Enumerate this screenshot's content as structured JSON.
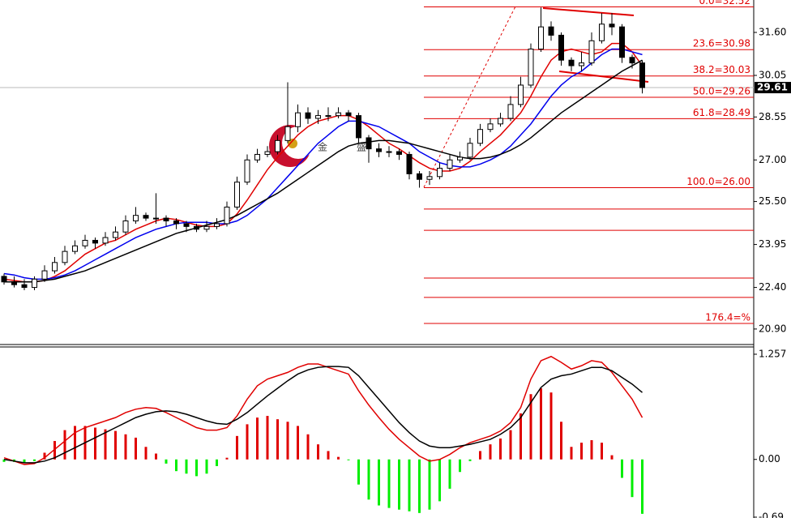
{
  "chart_data": [
    {
      "type": "candlestick",
      "open": [
        22.8,
        22.6,
        22.5,
        22.4,
        22.7,
        23.0,
        23.3,
        23.7,
        23.9,
        24.1,
        24.0,
        24.2,
        24.4,
        24.8,
        25.0,
        24.9,
        24.9,
        24.8,
        24.7,
        24.6,
        24.5,
        24.6,
        24.7,
        25.3,
        26.2,
        27.0,
        27.2,
        27.3,
        27.7,
        28.2,
        28.7,
        28.5,
        28.6,
        28.6,
        28.7,
        28.6,
        27.8,
        27.4,
        27.3,
        27.3,
        27.2,
        26.5,
        26.3,
        26.4,
        26.7,
        27.0,
        27.1,
        27.6,
        28.1,
        28.3,
        28.5,
        29.0,
        29.7,
        31.0,
        31.8,
        31.5,
        30.6,
        30.4,
        30.5,
        31.3,
        31.9,
        31.8,
        30.7,
        30.5
      ],
      "high": [
        22.9,
        22.8,
        22.7,
        22.8,
        23.2,
        23.5,
        23.9,
        24.1,
        24.3,
        24.2,
        24.4,
        24.6,
        25.0,
        25.3,
        25.1,
        25.8,
        25.0,
        24.9,
        24.8,
        24.7,
        24.8,
        24.9,
        25.5,
        26.4,
        27.2,
        27.4,
        27.5,
        27.9,
        29.8,
        29.0,
        28.9,
        28.8,
        28.9,
        28.9,
        28.8,
        28.7,
        27.9,
        27.6,
        27.5,
        27.4,
        27.3,
        26.6,
        26.6,
        26.9,
        27.2,
        27.3,
        27.8,
        28.3,
        28.5,
        28.7,
        29.3,
        30.0,
        31.2,
        32.5,
        32.0,
        31.6,
        30.7,
        30.9,
        31.6,
        32.3,
        32.3,
        31.9,
        30.8,
        30.6
      ],
      "low": [
        22.5,
        22.4,
        22.3,
        22.3,
        22.6,
        22.9,
        23.2,
        23.6,
        23.8,
        23.8,
        23.9,
        24.1,
        24.3,
        24.7,
        24.8,
        24.7,
        24.6,
        24.5,
        24.4,
        24.4,
        24.4,
        24.5,
        24.6,
        25.2,
        26.1,
        26.9,
        27.1,
        27.2,
        27.6,
        28.0,
        28.3,
        28.3,
        28.4,
        28.5,
        28.4,
        27.6,
        26.9,
        27.1,
        27.1,
        27.0,
        26.3,
        26.0,
        26.1,
        26.3,
        26.6,
        26.9,
        27.0,
        27.5,
        28.0,
        28.2,
        28.4,
        28.9,
        29.6,
        30.9,
        31.3,
        30.4,
        30.2,
        30.2,
        30.4,
        31.2,
        31.5,
        30.5,
        30.3,
        29.4
      ],
      "close": [
        22.6,
        22.5,
        22.4,
        22.7,
        23.0,
        23.3,
        23.7,
        23.9,
        24.1,
        24.0,
        24.2,
        24.4,
        24.8,
        25.0,
        24.9,
        24.9,
        24.8,
        24.7,
        24.6,
        24.5,
        24.6,
        24.7,
        25.3,
        26.2,
        27.0,
        27.2,
        27.3,
        27.7,
        28.2,
        28.7,
        28.5,
        28.6,
        28.6,
        28.7,
        28.6,
        27.8,
        27.4,
        27.3,
        27.3,
        27.2,
        26.5,
        26.3,
        26.4,
        26.7,
        27.0,
        27.1,
        27.6,
        28.1,
        28.3,
        28.5,
        29.0,
        29.7,
        31.0,
        31.8,
        31.5,
        30.6,
        30.4,
        30.5,
        31.3,
        31.9,
        31.8,
        30.7,
        30.5,
        29.61
      ],
      "lines": [
        {
          "color": "#e00000",
          "values": [
            22.7,
            22.65,
            22.6,
            22.6,
            22.65,
            22.8,
            23.0,
            23.3,
            23.6,
            23.8,
            24.0,
            24.1,
            24.3,
            24.5,
            24.65,
            24.8,
            24.9,
            24.85,
            24.75,
            24.65,
            24.6,
            24.6,
            24.7,
            25.05,
            25.55,
            26.1,
            26.65,
            27.1,
            27.5,
            27.9,
            28.2,
            28.4,
            28.5,
            28.6,
            28.6,
            28.45,
            28.2,
            27.9,
            27.6,
            27.4,
            27.15,
            26.9,
            26.7,
            26.6,
            26.6,
            26.7,
            26.95,
            27.3,
            27.6,
            27.9,
            28.3,
            28.7,
            29.3,
            30.0,
            30.6,
            30.9,
            31.0,
            30.9,
            30.8,
            30.9,
            31.2,
            31.2,
            30.9,
            30.4
          ]
        },
        {
          "color": "#0000ee",
          "values": [
            22.9,
            22.85,
            22.75,
            22.7,
            22.7,
            22.75,
            22.85,
            23.0,
            23.2,
            23.4,
            23.6,
            23.8,
            24.0,
            24.2,
            24.35,
            24.5,
            24.6,
            24.7,
            24.75,
            24.75,
            24.75,
            24.7,
            24.7,
            24.8,
            25.0,
            25.3,
            25.6,
            26.0,
            26.4,
            26.8,
            27.2,
            27.6,
            27.9,
            28.2,
            28.4,
            28.4,
            28.3,
            28.2,
            28.0,
            27.8,
            27.6,
            27.3,
            27.1,
            26.9,
            26.8,
            26.75,
            26.75,
            26.85,
            27.0,
            27.2,
            27.5,
            27.9,
            28.3,
            28.8,
            29.3,
            29.7,
            30.0,
            30.2,
            30.5,
            30.8,
            31.0,
            31.0,
            30.9,
            30.8
          ]
        },
        {
          "color": "#000000",
          "values": [
            22.6,
            22.6,
            22.6,
            22.6,
            22.65,
            22.7,
            22.8,
            22.9,
            23.0,
            23.15,
            23.3,
            23.45,
            23.6,
            23.75,
            23.9,
            24.05,
            24.2,
            24.35,
            24.45,
            24.55,
            24.65,
            24.75,
            24.85,
            25.0,
            25.2,
            25.4,
            25.6,
            25.8,
            26.05,
            26.3,
            26.55,
            26.8,
            27.05,
            27.3,
            27.5,
            27.6,
            27.65,
            27.7,
            27.7,
            27.65,
            27.6,
            27.5,
            27.4,
            27.3,
            27.2,
            27.1,
            27.05,
            27.05,
            27.1,
            27.2,
            27.35,
            27.55,
            27.8,
            28.1,
            28.4,
            28.7,
            28.95,
            29.2,
            29.45,
            29.7,
            29.95,
            30.2,
            30.4,
            30.6
          ]
        }
      ],
      "ylim": [
        20.37,
        32.77
      ],
      "yticks": [
        {
          "value": 31.6,
          "label": "31.60"
        },
        30.05,
        28.55,
        {
          "value": 27.0,
          "label": "27.00"
        },
        {
          "value": 25.5,
          "label": "25.50"
        },
        23.95,
        {
          "value": 22.4,
          "label": "22.40"
        },
        {
          "value": 20.9,
          "label": "20.90"
        }
      ],
      "fib_color": "#e00000",
      "fib_levels": [
        {
          "value": 32.52,
          "label": "0.0=32.52"
        },
        {
          "value": 30.98,
          "label": "23.6=30.98"
        },
        {
          "value": 30.03,
          "label": "38.2=30.03"
        },
        {
          "value": 29.26,
          "label": "50.0=29.26"
        },
        {
          "value": 28.49,
          "label": "61.8=28.49"
        },
        {
          "value": 26.0,
          "label": "100.0=26.00"
        },
        {
          "value": 25.23,
          "label": null
        },
        {
          "value": 24.46,
          "label": null
        },
        {
          "value": 22.74,
          "label": null
        },
        {
          "value": 22.04,
          "label": null
        },
        {
          "value": 21.1,
          "label": "176.4=%"
        }
      ],
      "last_price": 29.61,
      "watermark": [
        "金",
        "盛"
      ]
    },
    {
      "type": "macd",
      "histogram": [
        -0.03,
        -0.03,
        -0.04,
        -0.02,
        0.08,
        0.22,
        0.35,
        0.4,
        0.4,
        0.38,
        0.36,
        0.34,
        0.3,
        0.26,
        0.15,
        0.07,
        -0.05,
        -0.14,
        -0.17,
        -0.2,
        -0.17,
        -0.08,
        0.02,
        0.28,
        0.42,
        0.5,
        0.52,
        0.48,
        0.45,
        0.4,
        0.3,
        0.18,
        0.1,
        0.03,
        -0.01,
        -0.3,
        -0.48,
        -0.55,
        -0.58,
        -0.6,
        -0.62,
        -0.64,
        -0.6,
        -0.5,
        -0.35,
        -0.15,
        -0.02,
        0.1,
        0.18,
        0.25,
        0.35,
        0.55,
        0.78,
        0.85,
        0.8,
        0.45,
        0.15,
        0.2,
        0.23,
        0.2,
        0.05,
        -0.22,
        -0.45,
        -0.65
      ],
      "pos_color": "#e00000",
      "neg_color": "#00ee00",
      "lines": [
        {
          "color": "#e00000",
          "values": [
            0.02,
            -0.02,
            -0.06,
            -0.05,
            0.02,
            0.12,
            0.22,
            0.32,
            0.38,
            0.42,
            0.46,
            0.5,
            0.56,
            0.6,
            0.62,
            0.61,
            0.56,
            0.5,
            0.44,
            0.38,
            0.35,
            0.35,
            0.38,
            0.52,
            0.72,
            0.88,
            0.96,
            1.0,
            1.04,
            1.1,
            1.14,
            1.14,
            1.1,
            1.06,
            1.02,
            0.82,
            0.65,
            0.5,
            0.36,
            0.24,
            0.14,
            0.04,
            -0.02,
            0.0,
            0.06,
            0.14,
            0.2,
            0.24,
            0.28,
            0.34,
            0.44,
            0.62,
            0.96,
            1.18,
            1.23,
            1.16,
            1.08,
            1.12,
            1.18,
            1.16,
            1.04,
            0.88,
            0.72,
            0.5
          ]
        },
        {
          "color": "#000000",
          "values": [
            0.0,
            -0.02,
            -0.04,
            -0.04,
            -0.02,
            0.02,
            0.08,
            0.14,
            0.2,
            0.26,
            0.32,
            0.38,
            0.44,
            0.5,
            0.54,
            0.57,
            0.58,
            0.57,
            0.54,
            0.5,
            0.46,
            0.43,
            0.42,
            0.48,
            0.56,
            0.66,
            0.76,
            0.85,
            0.94,
            1.02,
            1.07,
            1.1,
            1.11,
            1.11,
            1.1,
            1.0,
            0.86,
            0.72,
            0.58,
            0.44,
            0.32,
            0.22,
            0.16,
            0.14,
            0.14,
            0.16,
            0.18,
            0.21,
            0.24,
            0.3,
            0.38,
            0.5,
            0.68,
            0.86,
            0.96,
            1.0,
            1.02,
            1.06,
            1.1,
            1.1,
            1.06,
            0.98,
            0.9,
            0.8
          ]
        }
      ],
      "ylim": [
        -0.7,
        1.344
      ],
      "yticks": [
        1.257,
        {
          "value": 0,
          "label": "0.00"
        },
        -0.69
      ]
    }
  ]
}
